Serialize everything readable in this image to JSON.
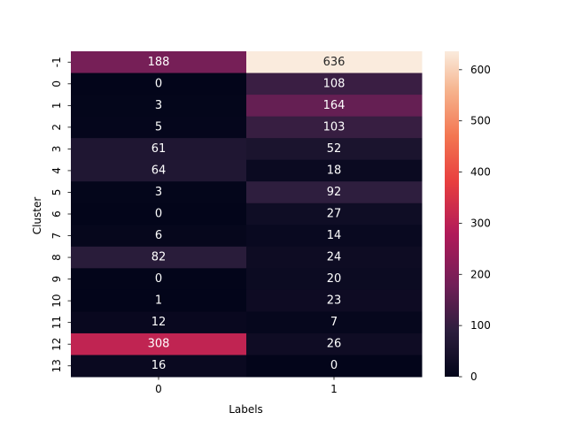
{
  "chart_data": {
    "type": "heatmap",
    "xlabel": "Labels",
    "ylabel": "Cluster",
    "x_categories": [
      "0",
      "1"
    ],
    "y_categories": [
      "-1",
      "0",
      "1",
      "2",
      "3",
      "4",
      "5",
      "6",
      "7",
      "8",
      "9",
      "10",
      "11",
      "12",
      "13"
    ],
    "values": [
      [
        188,
        636
      ],
      [
        0,
        108
      ],
      [
        3,
        164
      ],
      [
        5,
        103
      ],
      [
        61,
        52
      ],
      [
        64,
        18
      ],
      [
        3,
        92
      ],
      [
        0,
        27
      ],
      [
        6,
        14
      ],
      [
        82,
        24
      ],
      [
        0,
        20
      ],
      [
        1,
        23
      ],
      [
        12,
        7
      ],
      [
        308,
        26
      ],
      [
        16,
        0
      ]
    ],
    "colorbar": {
      "min": 0,
      "max": 636,
      "ticks": [
        "0",
        "100",
        "200",
        "300",
        "400",
        "500",
        "600"
      ],
      "colormap": "rocket"
    }
  }
}
